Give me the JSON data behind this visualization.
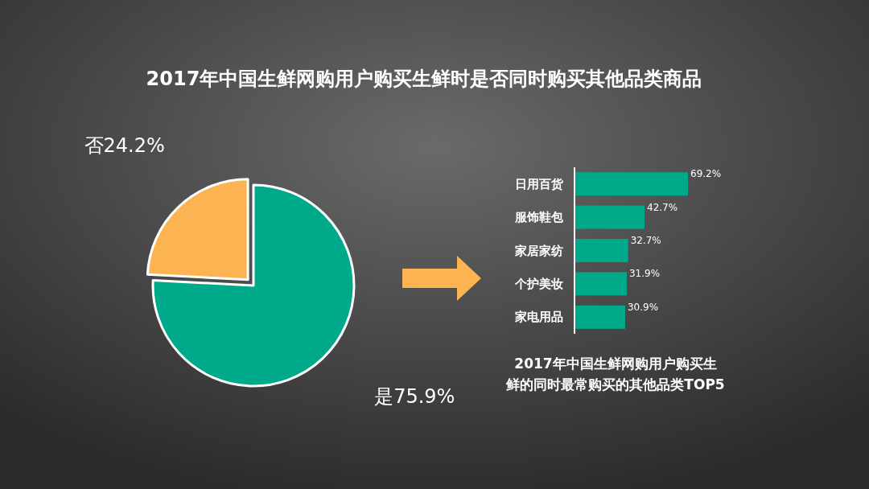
{
  "chart_data": [
    {
      "type": "pie",
      "title": "2017年中国生鲜网购用户购买生鲜时是否同时购买其他品类商品",
      "categories": [
        "是",
        "否"
      ],
      "values": [
        75.9,
        24.2
      ],
      "value_labels": [
        "75.9%",
        "24.2%"
      ],
      "colors": [
        "#00a98a",
        "#fbb451"
      ]
    },
    {
      "type": "bar",
      "orientation": "horizontal",
      "title": "2017年中国生鲜网购用户购买生鲜的同时最常购买的其他品类TOP5",
      "categories": [
        "日用百货",
        "服饰鞋包",
        "家居家纺",
        "个护美妆",
        "家电用品"
      ],
      "values": [
        69.2,
        42.7,
        32.7,
        31.9,
        30.9
      ],
      "value_labels": [
        "69.2%",
        "42.7%",
        "32.7%",
        "31.9%",
        "30.9%"
      ],
      "color": "#00a98a"
    }
  ]
}
